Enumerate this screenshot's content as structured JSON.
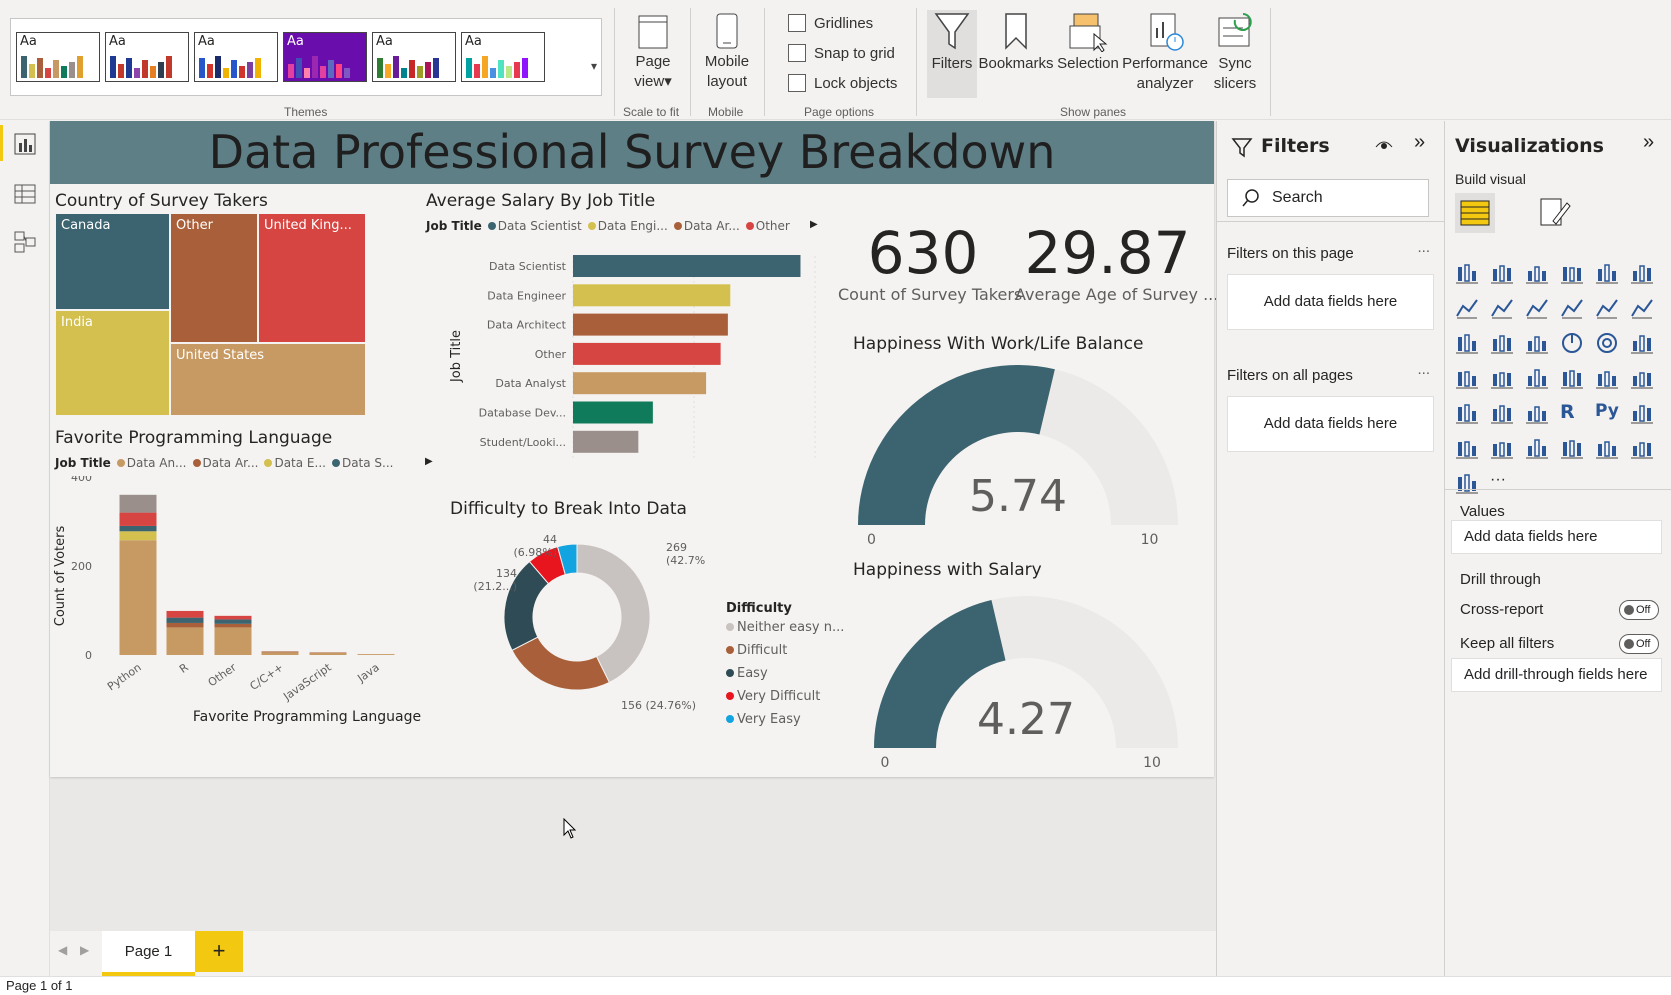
{
  "ribbon": {
    "themes_label": "Themes",
    "scale_label": "Scale to fit",
    "mobile_group_label": "Mobile",
    "page_options_label": "Page options",
    "show_panes_label": "Show panes",
    "page_view_line1": "Page",
    "page_view_line2": "view",
    "mobile_line1": "Mobile",
    "mobile_line2": "layout",
    "gridlines": "Gridlines",
    "snap_to_grid": "Snap to grid",
    "lock_objects": "Lock objects",
    "filters": "Filters",
    "bookmarks": "Bookmarks",
    "selection": "Selection",
    "perf_line1": "Performance",
    "perf_line2": "analyzer",
    "sync_line1": "Sync",
    "sync_line2": "slicers",
    "theme_glyph": "Aa"
  },
  "report": {
    "title": "Data Professional Survey Breakdown",
    "treemap": {
      "title": "Country of Survey Takers",
      "cells": [
        {
          "label": "Canada",
          "color": "#3c6470"
        },
        {
          "label": "Other",
          "color": "#a9603a"
        },
        {
          "label": "United King...",
          "color": "#d64541"
        },
        {
          "label": "India",
          "color": "#d4c04f"
        },
        {
          "label": "United States",
          "color": "#c79a63"
        }
      ]
    },
    "lang_chart": {
      "title": "Favorite Programming Language",
      "legend_title": "Job Title",
      "legend": [
        {
          "name": "Data An...",
          "color": "#c79a63"
        },
        {
          "name": "Data Ar...",
          "color": "#a9603a"
        },
        {
          "name": "Data E...",
          "color": "#d4c04f"
        },
        {
          "name": "Data S...",
          "color": "#3c6470"
        }
      ],
      "ylabel": "Count of Voters",
      "xlabel": "Favorite Programming Language"
    },
    "salary_chart": {
      "title": "Average Salary By Job Title",
      "legend_title": "Job Title",
      "legend": [
        {
          "name": "Data Scientist",
          "color": "#3c6470"
        },
        {
          "name": "Data Engi...",
          "color": "#d4c04f"
        },
        {
          "name": "Data Ar...",
          "color": "#a9603a"
        },
        {
          "name": "Other",
          "color": "#d64541"
        }
      ],
      "ylabel": "Job Title",
      "xlabel": "Average Salary"
    },
    "donut": {
      "title": "Difficulty to Break Into Data",
      "legend_title": "Difficulty",
      "legend": [
        {
          "name": "Neither easy n...",
          "color": "#c8c3c0"
        },
        {
          "name": "Difficult",
          "color": "#a9603a"
        },
        {
          "name": "Easy",
          "color": "#2f4b55"
        },
        {
          "name": "Very Difficult",
          "color": "#e8141e"
        },
        {
          "name": "Very Easy",
          "color": "#12a4e0"
        }
      ]
    },
    "kpi_count": {
      "value": "630",
      "label": "Count of Survey Takers"
    },
    "kpi_age": {
      "value": "29.87",
      "label": "Average Age of Survey ..."
    },
    "gauge1": {
      "title": "Happiness With Work/Life Balance",
      "value_label": "5.74",
      "min_label": "0",
      "max_label": "10"
    },
    "gauge2": {
      "title": "Happiness with Salary",
      "value_label": "4.27",
      "min_label": "0",
      "max_label": "10"
    }
  },
  "chart_data": [
    {
      "type": "treemap",
      "title": "Country of Survey Takers",
      "categories": [
        "Canada",
        "Other",
        "United King...",
        "India",
        "United States"
      ]
    },
    {
      "type": "bar",
      "title": "Favorite Programming Language",
      "categories": [
        "Python",
        "R",
        "Other",
        "C/C++",
        "JavaScript",
        "Java"
      ],
      "series": [
        {
          "name": "Data An...",
          "values": [
            258,
            62,
            62,
            6,
            5,
            2
          ]
        },
        {
          "name": "Data Ar...",
          "values": [
            0,
            10,
            8,
            2,
            1,
            0
          ]
        },
        {
          "name": "Data E...",
          "values": [
            20,
            0,
            0,
            0,
            0,
            0
          ]
        },
        {
          "name": "Data S...",
          "values": [
            12,
            12,
            10,
            0,
            0,
            0
          ]
        },
        {
          "name": "",
          "values": [
            30,
            15,
            8,
            0,
            0,
            0
          ]
        },
        {
          "name": "",
          "values": [
            40,
            0,
            0,
            0,
            0,
            0
          ]
        }
      ],
      "stack_colors": [
        "#c79a63",
        "#a9603a",
        "#d4c04f",
        "#3c6470",
        "#d64541",
        "#9a8f8a"
      ],
      "ylim": [
        0,
        450
      ],
      "yticks": [
        0,
        200,
        400
      ],
      "xlabel": "Favorite Programming Language",
      "ylabel": "Count of Voters"
    },
    {
      "type": "bar",
      "orientation": "horizontal",
      "title": "Average Salary By Job Title",
      "categories": [
        "Data Scientist",
        "Data Engineer",
        "Data Architect",
        "Other",
        "Data Analyst",
        "Database Dev...",
        "Student/Looki..."
      ],
      "values": [
        94,
        65,
        64,
        61,
        55,
        33,
        27
      ],
      "colors": [
        "#3c6470",
        "#d4c04f",
        "#a9603a",
        "#d64541",
        "#c79a63",
        "#0f7b5a",
        "#9a8f8a"
      ],
      "xlim": [
        0,
        100
      ],
      "xticks": [
        0,
        50,
        100
      ],
      "xlabel": "Average Salary",
      "ylabel": "Job Title"
    },
    {
      "type": "pie",
      "donut": true,
      "title": "Difficulty to Break Into Data",
      "slices": [
        {
          "name": "Neither easy n...",
          "value": 269,
          "label": "269\n(42.7%)",
          "color": "#c8c3c0"
        },
        {
          "name": "Difficult",
          "value": 156,
          "label": "156 (24.76%)",
          "color": "#a9603a"
        },
        {
          "name": "Easy",
          "value": 134,
          "label": "134\n(21.2...)",
          "color": "#2f4b55"
        },
        {
          "name": "Very Difficult",
          "value": 44,
          "label": "44\n(6.98%)",
          "color": "#e8141e"
        },
        {
          "name": "Very Easy",
          "value": 27,
          "label": "",
          "color": "#12a4e0"
        }
      ]
    },
    {
      "type": "gauge",
      "title": "Happiness With Work/Life Balance",
      "value": 5.74,
      "min": 0,
      "max": 10
    },
    {
      "type": "gauge",
      "title": "Happiness with Salary",
      "value": 4.27,
      "min": 0,
      "max": 10
    }
  ],
  "tabs": {
    "page1": "Page 1",
    "add": "+"
  },
  "status": {
    "text": "Page 1 of 1"
  },
  "filters_pane": {
    "title": "Filters",
    "search_placeholder": "Search",
    "on_this_page": "Filters on this page",
    "on_all_pages": "Filters on all pages",
    "dots": "...",
    "add_fields": "Add data fields here"
  },
  "viz_pane": {
    "title": "Visualizations",
    "build_visual": "Build visual",
    "values": "Values",
    "add_fields": "Add data fields here",
    "drill_through": "Drill through",
    "cross_report": "Cross-report",
    "keep_all_filters": "Keep all filters",
    "toggle_off": "Off",
    "add_drill": "Add drill-through fields here",
    "icon_r": "R",
    "icon_py": "Py",
    "more": "···"
  }
}
